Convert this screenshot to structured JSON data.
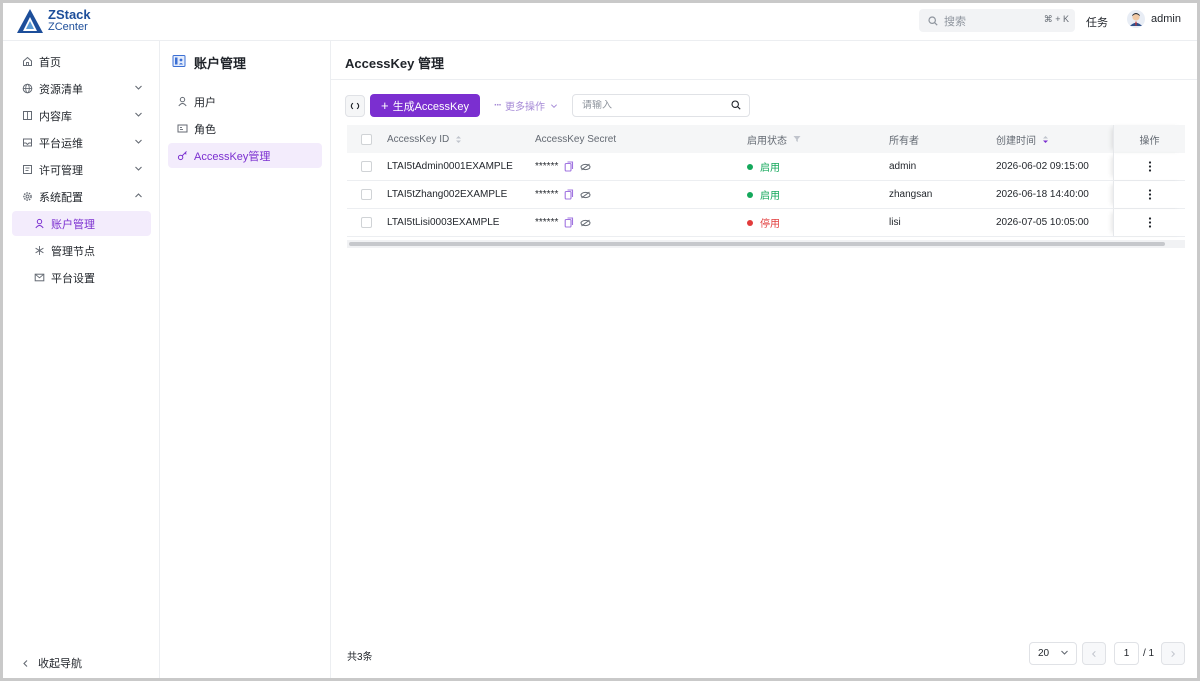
{
  "app": {
    "logo_line1": "ZStack",
    "logo_line2": "ZCenter"
  },
  "topbar": {
    "search_placeholder": "搜索",
    "search_shortcut": "⌘ + K",
    "tasks_label": "任务",
    "username": "admin"
  },
  "sidebar": {
    "items": [
      {
        "label": "首页",
        "icon": "home-icon"
      },
      {
        "label": "资源清单",
        "icon": "globe-icon"
      },
      {
        "label": "内容库",
        "icon": "book-icon"
      },
      {
        "label": "平台运维",
        "icon": "inbox-icon"
      },
      {
        "label": "许可管理",
        "icon": "license-icon"
      },
      {
        "label": "系统配置",
        "icon": "gear-icon"
      }
    ],
    "sub_items": [
      {
        "label": "账户管理",
        "icon": "user-icon"
      },
      {
        "label": "管理节点",
        "icon": "snowflake-icon"
      },
      {
        "label": "平台设置",
        "icon": "mail-icon"
      }
    ],
    "collapse_label": "收起导航"
  },
  "subpanel": {
    "title": "账户管理",
    "items": [
      {
        "label": "用户",
        "icon": "user-icon"
      },
      {
        "label": "角色",
        "icon": "id-card-icon"
      },
      {
        "label": "AccessKey管理",
        "icon": "key-icon"
      }
    ]
  },
  "main": {
    "title": "AccessKey 管理",
    "toolbar": {
      "generate_label": "生成AccessKey",
      "more_label": "更多操作",
      "search_placeholder": "请输入"
    },
    "table": {
      "columns": [
        "AccessKey ID",
        "AccessKey Secret",
        "启用状态",
        "所有者",
        "创建时间",
        "操作"
      ],
      "rows": [
        {
          "id": "LTAI5tAdmin0001EXAMPLE",
          "secret": "******",
          "status": "启用",
          "status_color": "#14a85b",
          "owner": "admin",
          "created": "2026-06-02 09:15:00"
        },
        {
          "id": "LTAI5tZhang002EXAMPLE",
          "secret": "******",
          "status": "启用",
          "status_color": "#14a85b",
          "owner": "zhangsan",
          "created": "2026-06-18 14:40:00"
        },
        {
          "id": "LTAI5tLisi0003EXAMPLE",
          "secret": "******",
          "status": "停用",
          "status_color": "#e23b3b",
          "owner": "lisi",
          "created": "2026-07-05 10:05:00"
        }
      ]
    },
    "footer": {
      "total": "共3条",
      "page_size": "20",
      "current_page": "1",
      "total_pages": "/ 1"
    }
  },
  "colors": {
    "accent": "#7b2fd0",
    "enabled": "#14a85b",
    "disabled": "#e23b3b"
  }
}
